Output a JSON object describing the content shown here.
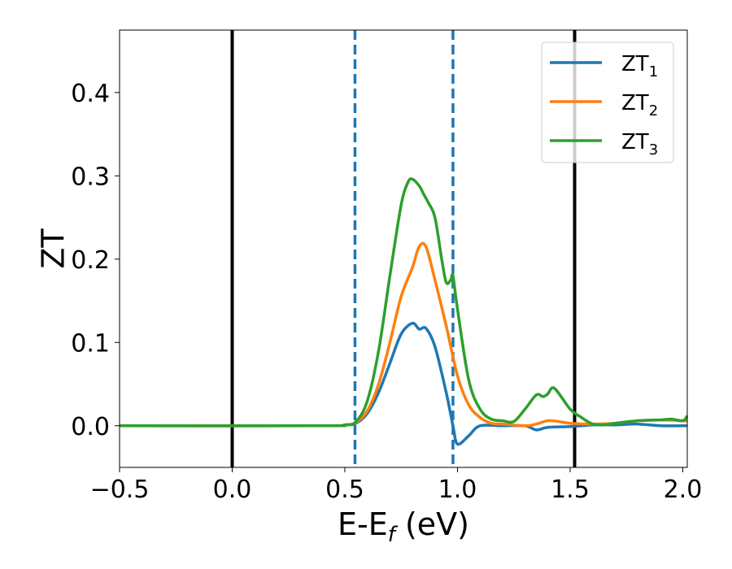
{
  "chart_data": {
    "type": "line",
    "xlabel": {
      "main": "E-E",
      "sub": "f",
      "unit": " (eV)"
    },
    "ylabel": "ZT",
    "xlim": [
      -0.5,
      2.02
    ],
    "ylim": [
      -0.05,
      0.475
    ],
    "xticks": [
      -0.5,
      0.0,
      0.5,
      1.0,
      1.5,
      2.0
    ],
    "xtick_labels": [
      "−0.5",
      "0.0",
      "0.5",
      "1.0",
      "1.5",
      "2.0"
    ],
    "yticks": [
      0.0,
      0.1,
      0.2,
      0.3,
      0.4
    ],
    "ytick_labels": [
      "0.0",
      "0.1",
      "0.2",
      "0.3",
      "0.4"
    ],
    "grid": false,
    "legend_position": "top-right",
    "vertical_lines": [
      {
        "x": 0.0,
        "style": "solid",
        "color": "#000000"
      },
      {
        "x": 1.52,
        "style": "solid",
        "color": "#000000"
      },
      {
        "x": 0.545,
        "style": "dashed",
        "color": "#1f77b4"
      },
      {
        "x": 0.98,
        "style": "dashed",
        "color": "#1f77b4"
      }
    ],
    "series": [
      {
        "name": {
          "main": "ZT",
          "sub": "1"
        },
        "color": "#1f77b4",
        "x": [
          -0.5,
          0.4,
          0.5,
          0.55,
          0.6,
          0.65,
          0.7,
          0.75,
          0.8,
          0.83,
          0.86,
          0.9,
          0.95,
          0.98,
          1.0,
          1.05,
          1.1,
          1.2,
          1.3,
          1.35,
          1.4,
          1.5,
          1.6,
          1.7,
          1.8,
          1.9,
          2.0,
          2.02
        ],
        "y": [
          0.0,
          0.0,
          0.001,
          0.003,
          0.015,
          0.04,
          0.075,
          0.11,
          0.123,
          0.116,
          0.117,
          0.095,
          0.04,
          0.0,
          -0.022,
          -0.012,
          0.0,
          0.0,
          0.0,
          -0.005,
          -0.002,
          -0.001,
          0.001,
          0.001,
          0.002,
          0.0,
          0.0,
          0.0
        ]
      },
      {
        "name": {
          "main": "ZT",
          "sub": "2"
        },
        "color": "#ff7f0e",
        "x": [
          -0.5,
          0.4,
          0.5,
          0.55,
          0.6,
          0.65,
          0.7,
          0.75,
          0.8,
          0.83,
          0.86,
          0.9,
          0.95,
          1.0,
          1.05,
          1.1,
          1.15,
          1.2,
          1.3,
          1.35,
          1.4,
          1.45,
          1.5,
          1.6,
          1.7,
          1.8,
          1.9,
          2.0,
          2.02
        ],
        "y": [
          0.0,
          0.0,
          0.001,
          0.004,
          0.018,
          0.05,
          0.1,
          0.155,
          0.19,
          0.215,
          0.215,
          0.175,
          0.12,
          0.06,
          0.025,
          0.01,
          0.003,
          0.002,
          0.0,
          0.002,
          0.006,
          0.005,
          0.003,
          0.002,
          0.003,
          0.006,
          0.007,
          0.006,
          0.006
        ]
      },
      {
        "name": {
          "main": "ZT",
          "sub": "3"
        },
        "color": "#2ca02c",
        "x": [
          -0.5,
          0.4,
          0.5,
          0.55,
          0.6,
          0.65,
          0.7,
          0.75,
          0.78,
          0.8,
          0.83,
          0.85,
          0.87,
          0.9,
          0.93,
          0.95,
          0.97,
          0.98,
          1.0,
          1.05,
          1.1,
          1.15,
          1.2,
          1.25,
          1.3,
          1.35,
          1.38,
          1.4,
          1.43,
          1.5,
          1.55,
          1.6,
          1.65,
          1.7,
          1.8,
          1.9,
          1.95,
          2.0,
          2.02
        ],
        "y": [
          0.0,
          0.0,
          0.001,
          0.005,
          0.03,
          0.09,
          0.18,
          0.265,
          0.292,
          0.296,
          0.288,
          0.278,
          0.268,
          0.25,
          0.2,
          0.172,
          0.175,
          0.18,
          0.14,
          0.055,
          0.02,
          0.008,
          0.006,
          0.005,
          0.02,
          0.037,
          0.035,
          0.038,
          0.045,
          0.02,
          0.01,
          0.002,
          0.001,
          0.003,
          0.006,
          0.007,
          0.008,
          0.006,
          0.012
        ]
      }
    ]
  }
}
